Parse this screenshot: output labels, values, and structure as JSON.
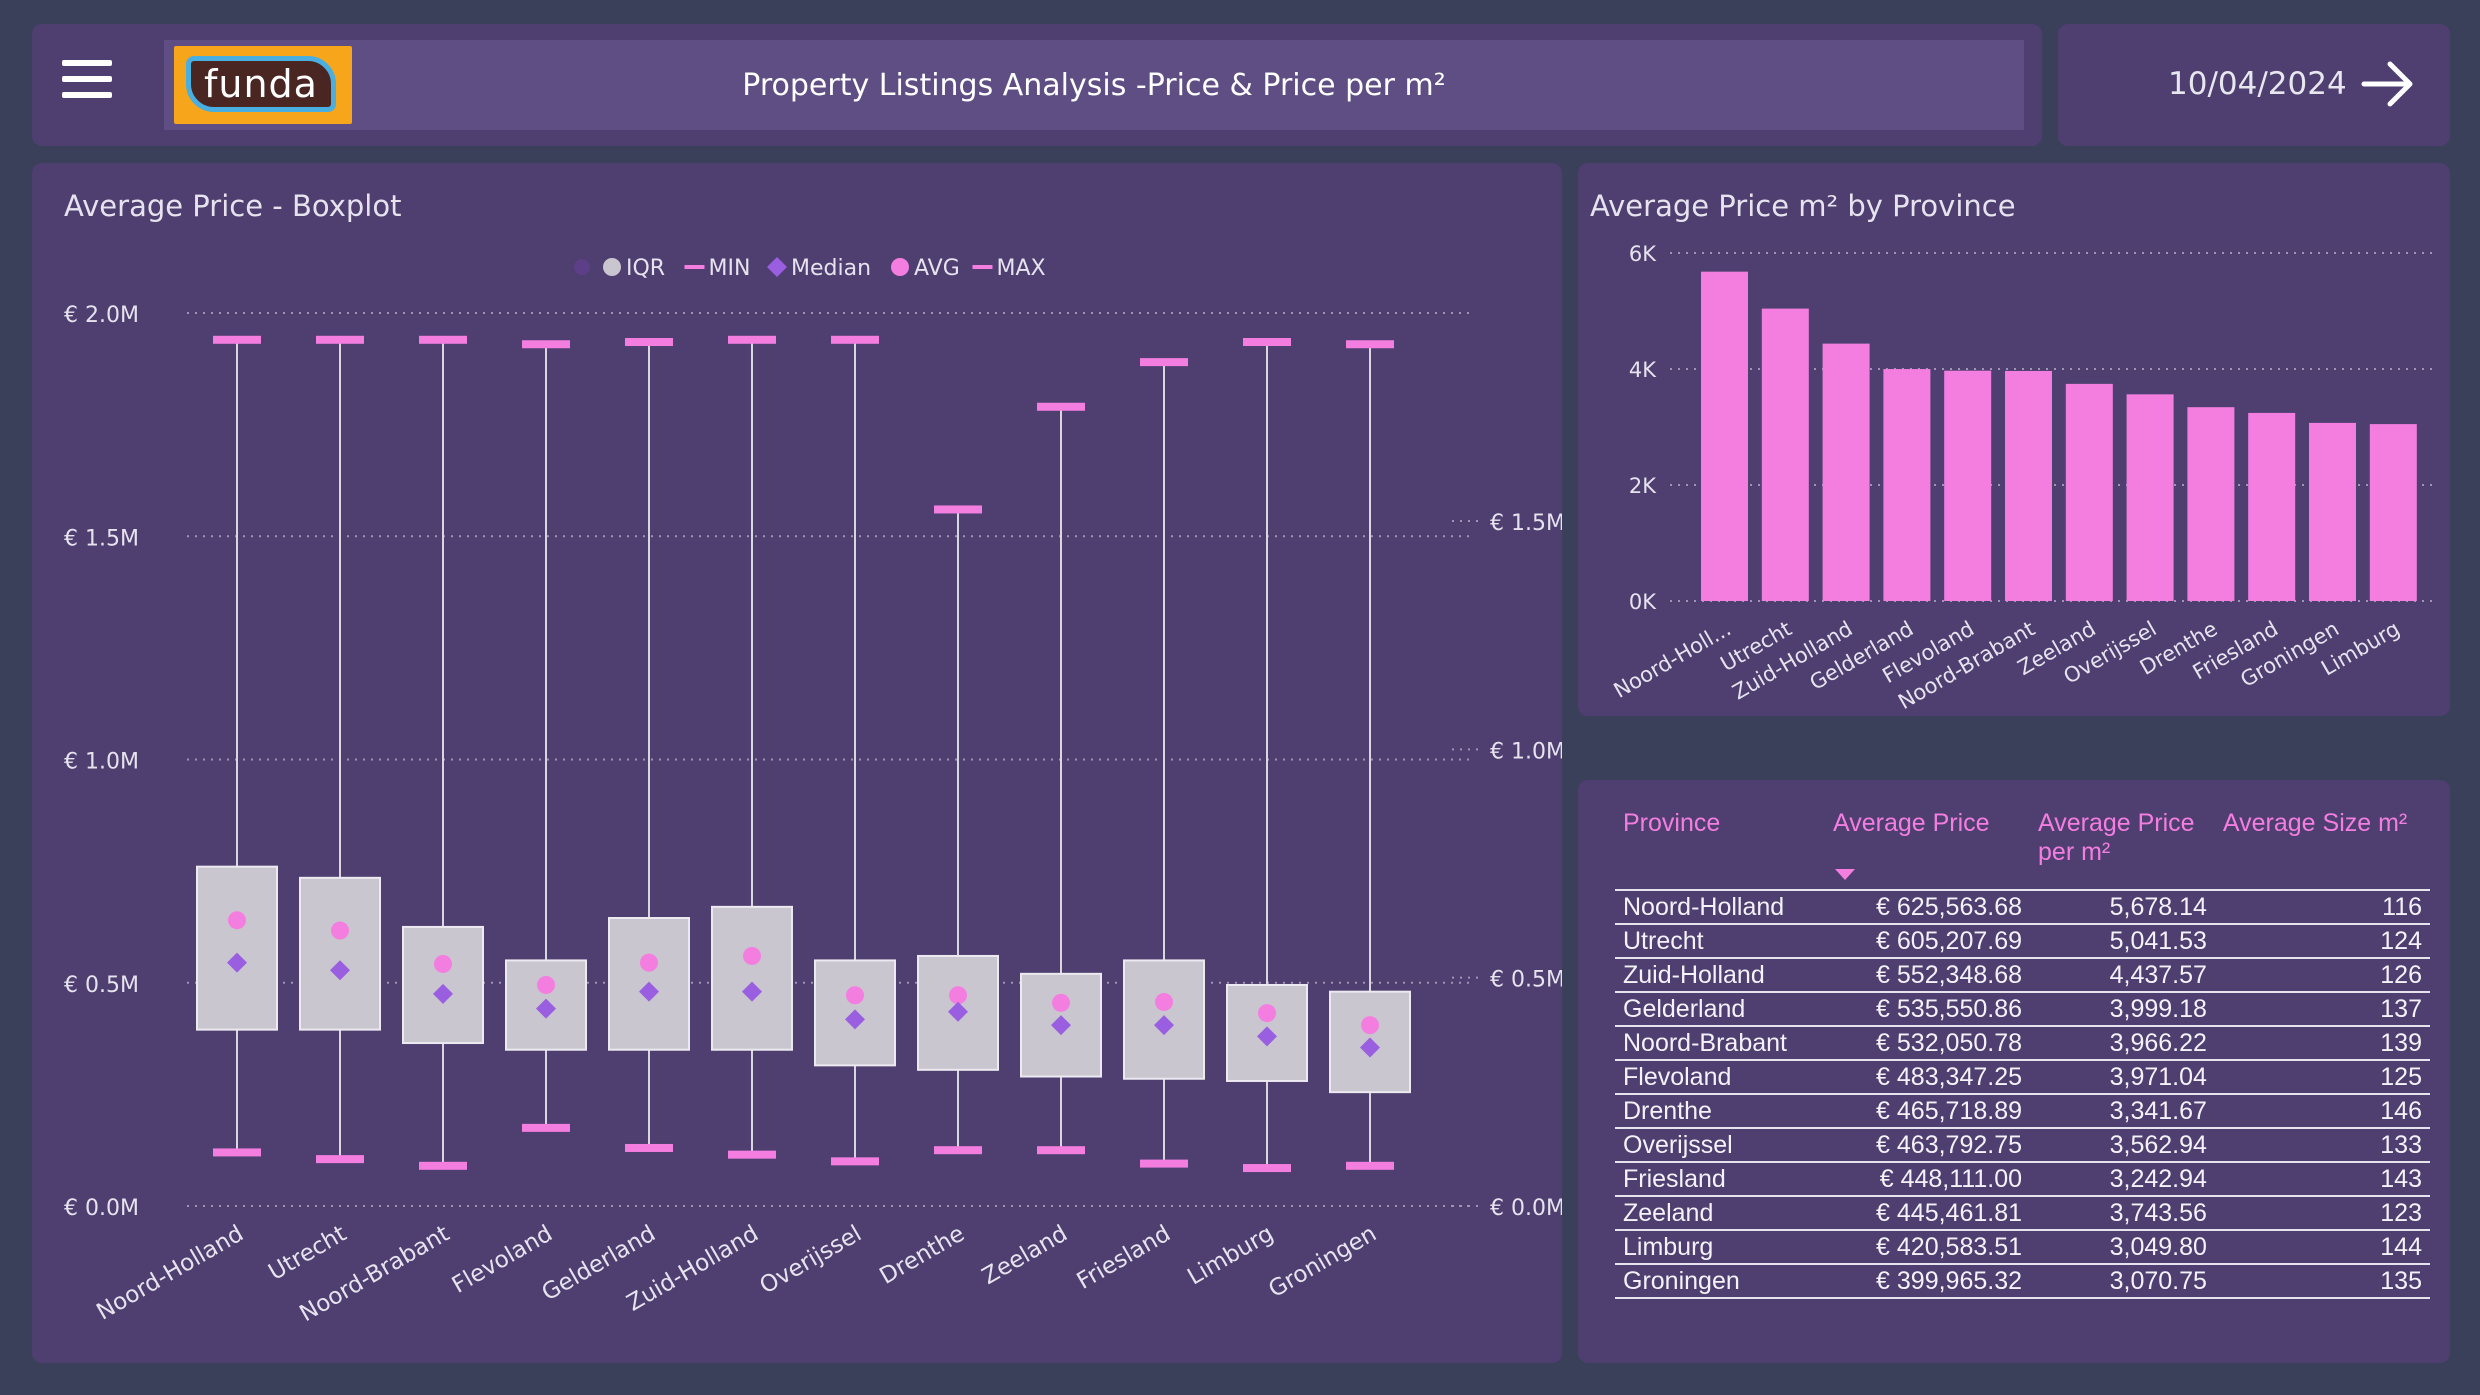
{
  "header": {
    "title": "Property Listings Analysis -Price & Price per m²",
    "logo_text": "funda",
    "date": "10/04/2024"
  },
  "colors": {
    "background": "#3a3f5a",
    "panel": "#4e3f70",
    "pink": "#f47ee0",
    "iqr": "#c9c6cf",
    "median": "#9a5ee0"
  },
  "chart_data": [
    {
      "type": "boxplot",
      "title": "Average Price - Boxplot",
      "legend": [
        "IQR",
        "MIN",
        "Median",
        "AVG",
        "MAX"
      ],
      "legend_position": "top-center",
      "y_ticks": [
        "€ 0.0M",
        "€ 0.5M",
        "€ 1.0M",
        "€ 1.5M",
        "€ 2.0M"
      ],
      "y2_ticks": [
        "€ 0.0M",
        "€ 0.5M",
        "€ 1.0M",
        "€ 1.5M"
      ],
      "ylim": [
        0,
        2000000
      ],
      "categories": [
        "Noord-Holland",
        "Utrecht",
        "Noord-Brabant",
        "Flevoland",
        "Gelderland",
        "Zuid-Holland",
        "Overijssel",
        "Drenthe",
        "Zeeland",
        "Friesland",
        "Limburg",
        "Groningen"
      ],
      "max": [
        1940000,
        1940000,
        1940000,
        1930000,
        1935000,
        1940000,
        1940000,
        1560000,
        1790000,
        1890000,
        1935000,
        1930000
      ],
      "q3": [
        760000,
        735000,
        625000,
        550000,
        645000,
        670000,
        550000,
        560000,
        520000,
        550000,
        495000,
        480000
      ],
      "avg": [
        640000,
        617000,
        542000,
        495000,
        545000,
        560000,
        472000,
        472000,
        455000,
        457000,
        432000,
        405000
      ],
      "median": [
        545000,
        528000,
        475000,
        442000,
        480000,
        480000,
        418000,
        435000,
        405000,
        405000,
        380000,
        355000
      ],
      "q1": [
        395000,
        395000,
        365000,
        350000,
        350000,
        350000,
        315000,
        305000,
        290000,
        285000,
        280000,
        255000
      ],
      "min": [
        120000,
        105000,
        90000,
        175000,
        130000,
        115000,
        100000,
        125000,
        125000,
        95000,
        85000,
        90000
      ]
    },
    {
      "type": "bar",
      "title": "Average Price m² by Province",
      "categories": [
        "Noord-Holl...",
        "Utrecht",
        "Zuid-Holland",
        "Gelderland",
        "Flevoland",
        "Noord-Brabant",
        "Zeeland",
        "Overijssel",
        "Drenthe",
        "Friesland",
        "Groningen",
        "Limburg"
      ],
      "values": [
        5678.14,
        5041.53,
        4437.57,
        3999.18,
        3971.04,
        3966.22,
        3743.56,
        3562.94,
        3341.67,
        3242.94,
        3070.75,
        3049.8
      ],
      "y_ticks": [
        "0K",
        "2K",
        "4K",
        "6K"
      ],
      "ylim": [
        0,
        6000
      ]
    }
  ],
  "table": {
    "columns": [
      "Province",
      "Average Price",
      "Average Price per m²",
      "Average Size m²"
    ],
    "rows": [
      [
        "Noord-Holland",
        "€ 625,563.68",
        "5,678.14",
        "116"
      ],
      [
        "Utrecht",
        "€ 605,207.69",
        "5,041.53",
        "124"
      ],
      [
        "Zuid-Holland",
        "€ 552,348.68",
        "4,437.57",
        "126"
      ],
      [
        "Gelderland",
        "€ 535,550.86",
        "3,999.18",
        "137"
      ],
      [
        "Noord-Brabant",
        "€ 532,050.78",
        "3,966.22",
        "139"
      ],
      [
        "Flevoland",
        "€ 483,347.25",
        "3,971.04",
        "125"
      ],
      [
        "Drenthe",
        "€ 465,718.89",
        "3,341.67",
        "146"
      ],
      [
        "Overijssel",
        "€ 463,792.75",
        "3,562.94",
        "133"
      ],
      [
        "Friesland",
        "€ 448,111.00",
        "3,242.94",
        "143"
      ],
      [
        "Zeeland",
        "€ 445,461.81",
        "3,743.56",
        "123"
      ],
      [
        "Limburg",
        "€ 420,583.51",
        "3,049.80",
        "144"
      ],
      [
        "Groningen",
        "€ 399,965.32",
        "3,070.75",
        "135"
      ]
    ]
  }
}
